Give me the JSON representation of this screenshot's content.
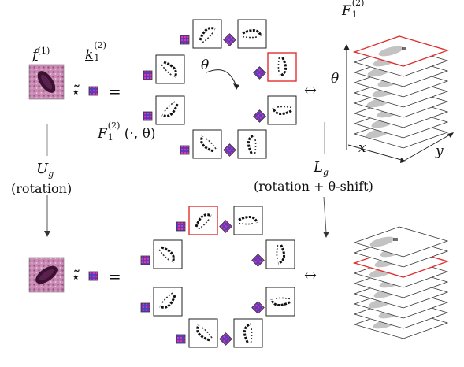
{
  "labels": {
    "f_sym": "f",
    "f_sup": "(1)",
    "k_sym": "k",
    "k_sub": "1",
    "k_sup": "(2)",
    "conv_top": "⋆̃",
    "eq_top": "=",
    "conv_bot": "⋆̃",
    "eq_bot": "=",
    "theta_circle": "θ",
    "theta_axis": "θ",
    "F_stack_sym": "F",
    "F_stack_sub": "1",
    "F_stack_sup": "(2)",
    "F_theta_sym": "F",
    "F_theta_sub": "1",
    "F_theta_sup": "(2)",
    "F_theta_args": "(·, θ)",
    "x_axis": "x",
    "y_axis": "y",
    "iff_top": "↔",
    "iff_bot": "↔",
    "U_sym": "U",
    "U_sub": "g",
    "U_caption": "(rotation)",
    "L_sym": "L",
    "L_sub": "g",
    "L_caption": "(rotation + θ-shift)"
  },
  "colors": {
    "highlight": "#e03030",
    "tissue_bg": "#c98ab3",
    "tissue_dark": "#3a1230",
    "kernel_a": "#7a2fb0",
    "kernel_b": "#2b4fd6",
    "layer_fill": "#ffffff",
    "layer_gray": "#b8b8b8"
  }
}
